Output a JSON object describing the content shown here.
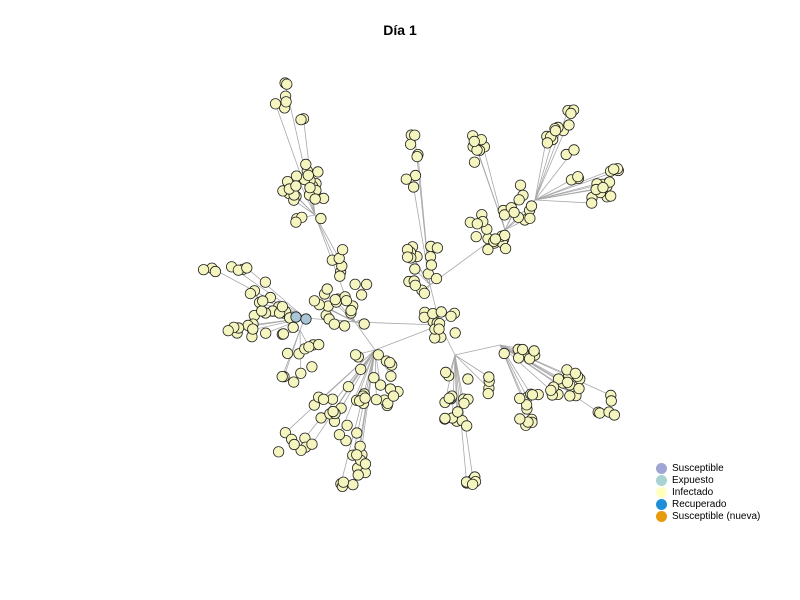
{
  "title": "Día 1",
  "colors": {
    "node_fill": "#f5f5bf",
    "node_stroke": "#222222",
    "edge": "#a8a8a8",
    "exposed_fill": "#a9c6d6"
  },
  "legend": [
    {
      "label": "Susceptible",
      "color": "#9fa6d3"
    },
    {
      "label": "Expuesto",
      "color": "#a9d3d3"
    },
    {
      "label": "Infectado",
      "color": "#ffffbf"
    },
    {
      "label": "Recuperado",
      "color": "#1e8fd6"
    },
    {
      "label": "Susceptible (nueva)",
      "color": "#e69a0c"
    }
  ]
}
